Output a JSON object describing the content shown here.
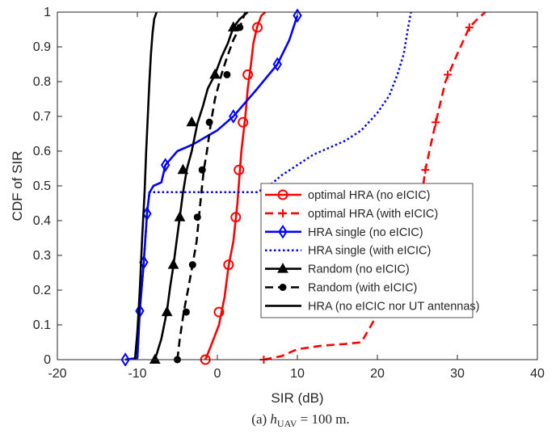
{
  "chart_data": {
    "type": "line",
    "xlabel": "SIR (dB)",
    "ylabel": "CDF of SIR",
    "caption_prefix": "(a) ",
    "caption_var": "h",
    "caption_sub": "UAV",
    "caption_suffix": " = 100  m.",
    "xlim": [
      -20,
      40
    ],
    "ylim": [
      0,
      1
    ],
    "xticks": [
      -20,
      -10,
      0,
      10,
      20,
      30,
      40
    ],
    "yticks": [
      0,
      0.1,
      0.2,
      0.3,
      0.4,
      0.5,
      0.6,
      0.7,
      0.8,
      0.9,
      1
    ],
    "grid": false,
    "legend_position": "center-right",
    "series": [
      {
        "name": "optimal HRA (no eICIC)",
        "color": "#ff0000",
        "dash": "solid",
        "marker": "circle",
        "x": [
          -1.5,
          -0.8,
          0.2,
          0.9,
          1.4,
          2.0,
          2.5,
          3.0,
          3.5,
          3.8,
          4.2,
          4.5,
          5.0,
          5.5,
          6.0
        ],
        "y": [
          0,
          0.04,
          0.1,
          0.18,
          0.27,
          0.34,
          0.45,
          0.6,
          0.7,
          0.78,
          0.85,
          0.91,
          0.96,
          0.99,
          1.0
        ],
        "markers_x": [
          -1.5,
          0.2,
          1.4,
          2.3,
          2.7,
          3.2,
          3.8,
          5.0
        ],
        "markers_y": [
          0,
          0.137,
          0.273,
          0.41,
          0.546,
          0.683,
          0.82,
          0.956
        ]
      },
      {
        "name": "optimal HRA (with eICIC)",
        "color": "#ff0000",
        "dash": "dashed",
        "marker": "plus",
        "x": [
          5.8,
          8.0,
          10.0,
          13.0,
          16.0,
          18.0,
          20.0,
          22.0,
          24.0,
          25.0,
          25.6,
          26.0,
          26.5,
          27.3,
          28.5,
          30.0,
          31.5,
          32.5,
          33.5
        ],
        "y": [
          0,
          0.01,
          0.03,
          0.04,
          0.045,
          0.05,
          0.13,
          0.21,
          0.3,
          0.4,
          0.48,
          0.546,
          0.6,
          0.683,
          0.8,
          0.88,
          0.956,
          0.98,
          1.0
        ],
        "markers_x": [
          5.8,
          26.0,
          27.3,
          28.8,
          31.5
        ],
        "markers_y": [
          0,
          0.546,
          0.683,
          0.82,
          0.956
        ]
      },
      {
        "name": "HRA single (no eICIC)",
        "color": "#0000ff",
        "dash": "solid",
        "marker": "diamond",
        "x": [
          -11.5,
          -10.0,
          -9.7,
          -9.2,
          -8.8,
          -8.5,
          -8.0,
          -7.0,
          -6.5,
          -5.0,
          -3.0,
          0.0,
          2.0,
          5.0,
          7.5,
          9.0,
          10.0
        ],
        "y": [
          0,
          0.005,
          0.14,
          0.28,
          0.42,
          0.48,
          0.5,
          0.51,
          0.56,
          0.6,
          0.62,
          0.66,
          0.7,
          0.78,
          0.85,
          0.92,
          0.99
        ],
        "markers_x": [
          -11.5,
          -9.7,
          -9.2,
          -8.8,
          -6.5,
          2.0,
          7.5,
          10.0
        ],
        "markers_y": [
          0,
          0.14,
          0.28,
          0.42,
          0.56,
          0.7,
          0.85,
          0.99
        ]
      },
      {
        "name": "HRA single (with eICIC)",
        "color": "#0000ff",
        "dash": "dotted",
        "marker": "none",
        "x": [
          -11.5,
          -10.0,
          -9.7,
          -9.2,
          -8.8,
          -8.5,
          -7.0,
          5.0,
          6.5,
          8.0,
          10.0,
          12.0,
          14.0,
          16.0,
          18.0,
          20.0,
          21.5,
          22.5,
          23.3,
          23.8,
          24.2
        ],
        "y": [
          0,
          0.005,
          0.14,
          0.28,
          0.42,
          0.482,
          0.482,
          0.482,
          0.5,
          0.53,
          0.56,
          0.59,
          0.61,
          0.63,
          0.66,
          0.71,
          0.76,
          0.82,
          0.88,
          0.95,
          1.0
        ],
        "markers_x": [],
        "markers_y": []
      },
      {
        "name": "Random (no eICIC)",
        "color": "#000000",
        "dash": "solid",
        "marker": "triangle",
        "x": [
          -7.8,
          -7.0,
          -6.3,
          -5.9,
          -5.5,
          -5.1,
          -4.7,
          -4.3,
          -3.8,
          -3.2,
          -2.5,
          -1.8,
          -1.2,
          -0.3,
          0.5,
          1.3,
          2.0,
          2.8,
          3.8
        ],
        "y": [
          0,
          0.06,
          0.14,
          0.21,
          0.27,
          0.34,
          0.41,
          0.48,
          0.55,
          0.6,
          0.68,
          0.73,
          0.78,
          0.82,
          0.87,
          0.91,
          0.956,
          0.98,
          1.0
        ],
        "markers_x": [
          -7.8,
          -6.3,
          -5.5,
          -4.7,
          -4.3,
          -3.2,
          -0.3,
          2.0
        ],
        "markers_y": [
          0,
          0.137,
          0.273,
          0.41,
          0.546,
          0.683,
          0.82,
          0.956
        ]
      },
      {
        "name": "Random (with eICIC)",
        "color": "#000000",
        "dash": "dashed",
        "marker": "dot",
        "x": [
          -5.0,
          -4.7,
          -4.2,
          -3.6,
          -3.1,
          -2.6,
          -2.3,
          -2.0,
          -1.7,
          -1.3,
          -0.8,
          -0.3,
          0.5,
          1.2,
          2.0,
          2.8,
          3.5
        ],
        "y": [
          0,
          0.06,
          0.137,
          0.21,
          0.273,
          0.34,
          0.41,
          0.48,
          0.546,
          0.6,
          0.683,
          0.75,
          0.82,
          0.87,
          0.92,
          0.956,
          1.0
        ],
        "markers_x": [
          -5.0,
          -3.9,
          -3.1,
          -2.5,
          -1.9,
          -1.0,
          1.2,
          2.8
        ],
        "markers_y": [
          0,
          0.137,
          0.273,
          0.41,
          0.546,
          0.683,
          0.82,
          0.956
        ]
      },
      {
        "name": "HRA (no eICIC nor UT antennas)",
        "color": "#000000",
        "dash": "solid",
        "marker": "none",
        "x": [
          -10.3,
          -10.0,
          -9.7,
          -9.4,
          -9.1,
          -8.9,
          -8.7,
          -8.5,
          -8.3,
          -8.1,
          -7.9,
          -7.6
        ],
        "y": [
          0,
          0.08,
          0.2,
          0.35,
          0.48,
          0.6,
          0.7,
          0.8,
          0.88,
          0.94,
          0.98,
          1.0
        ],
        "markers_x": [],
        "markers_y": []
      }
    ]
  }
}
